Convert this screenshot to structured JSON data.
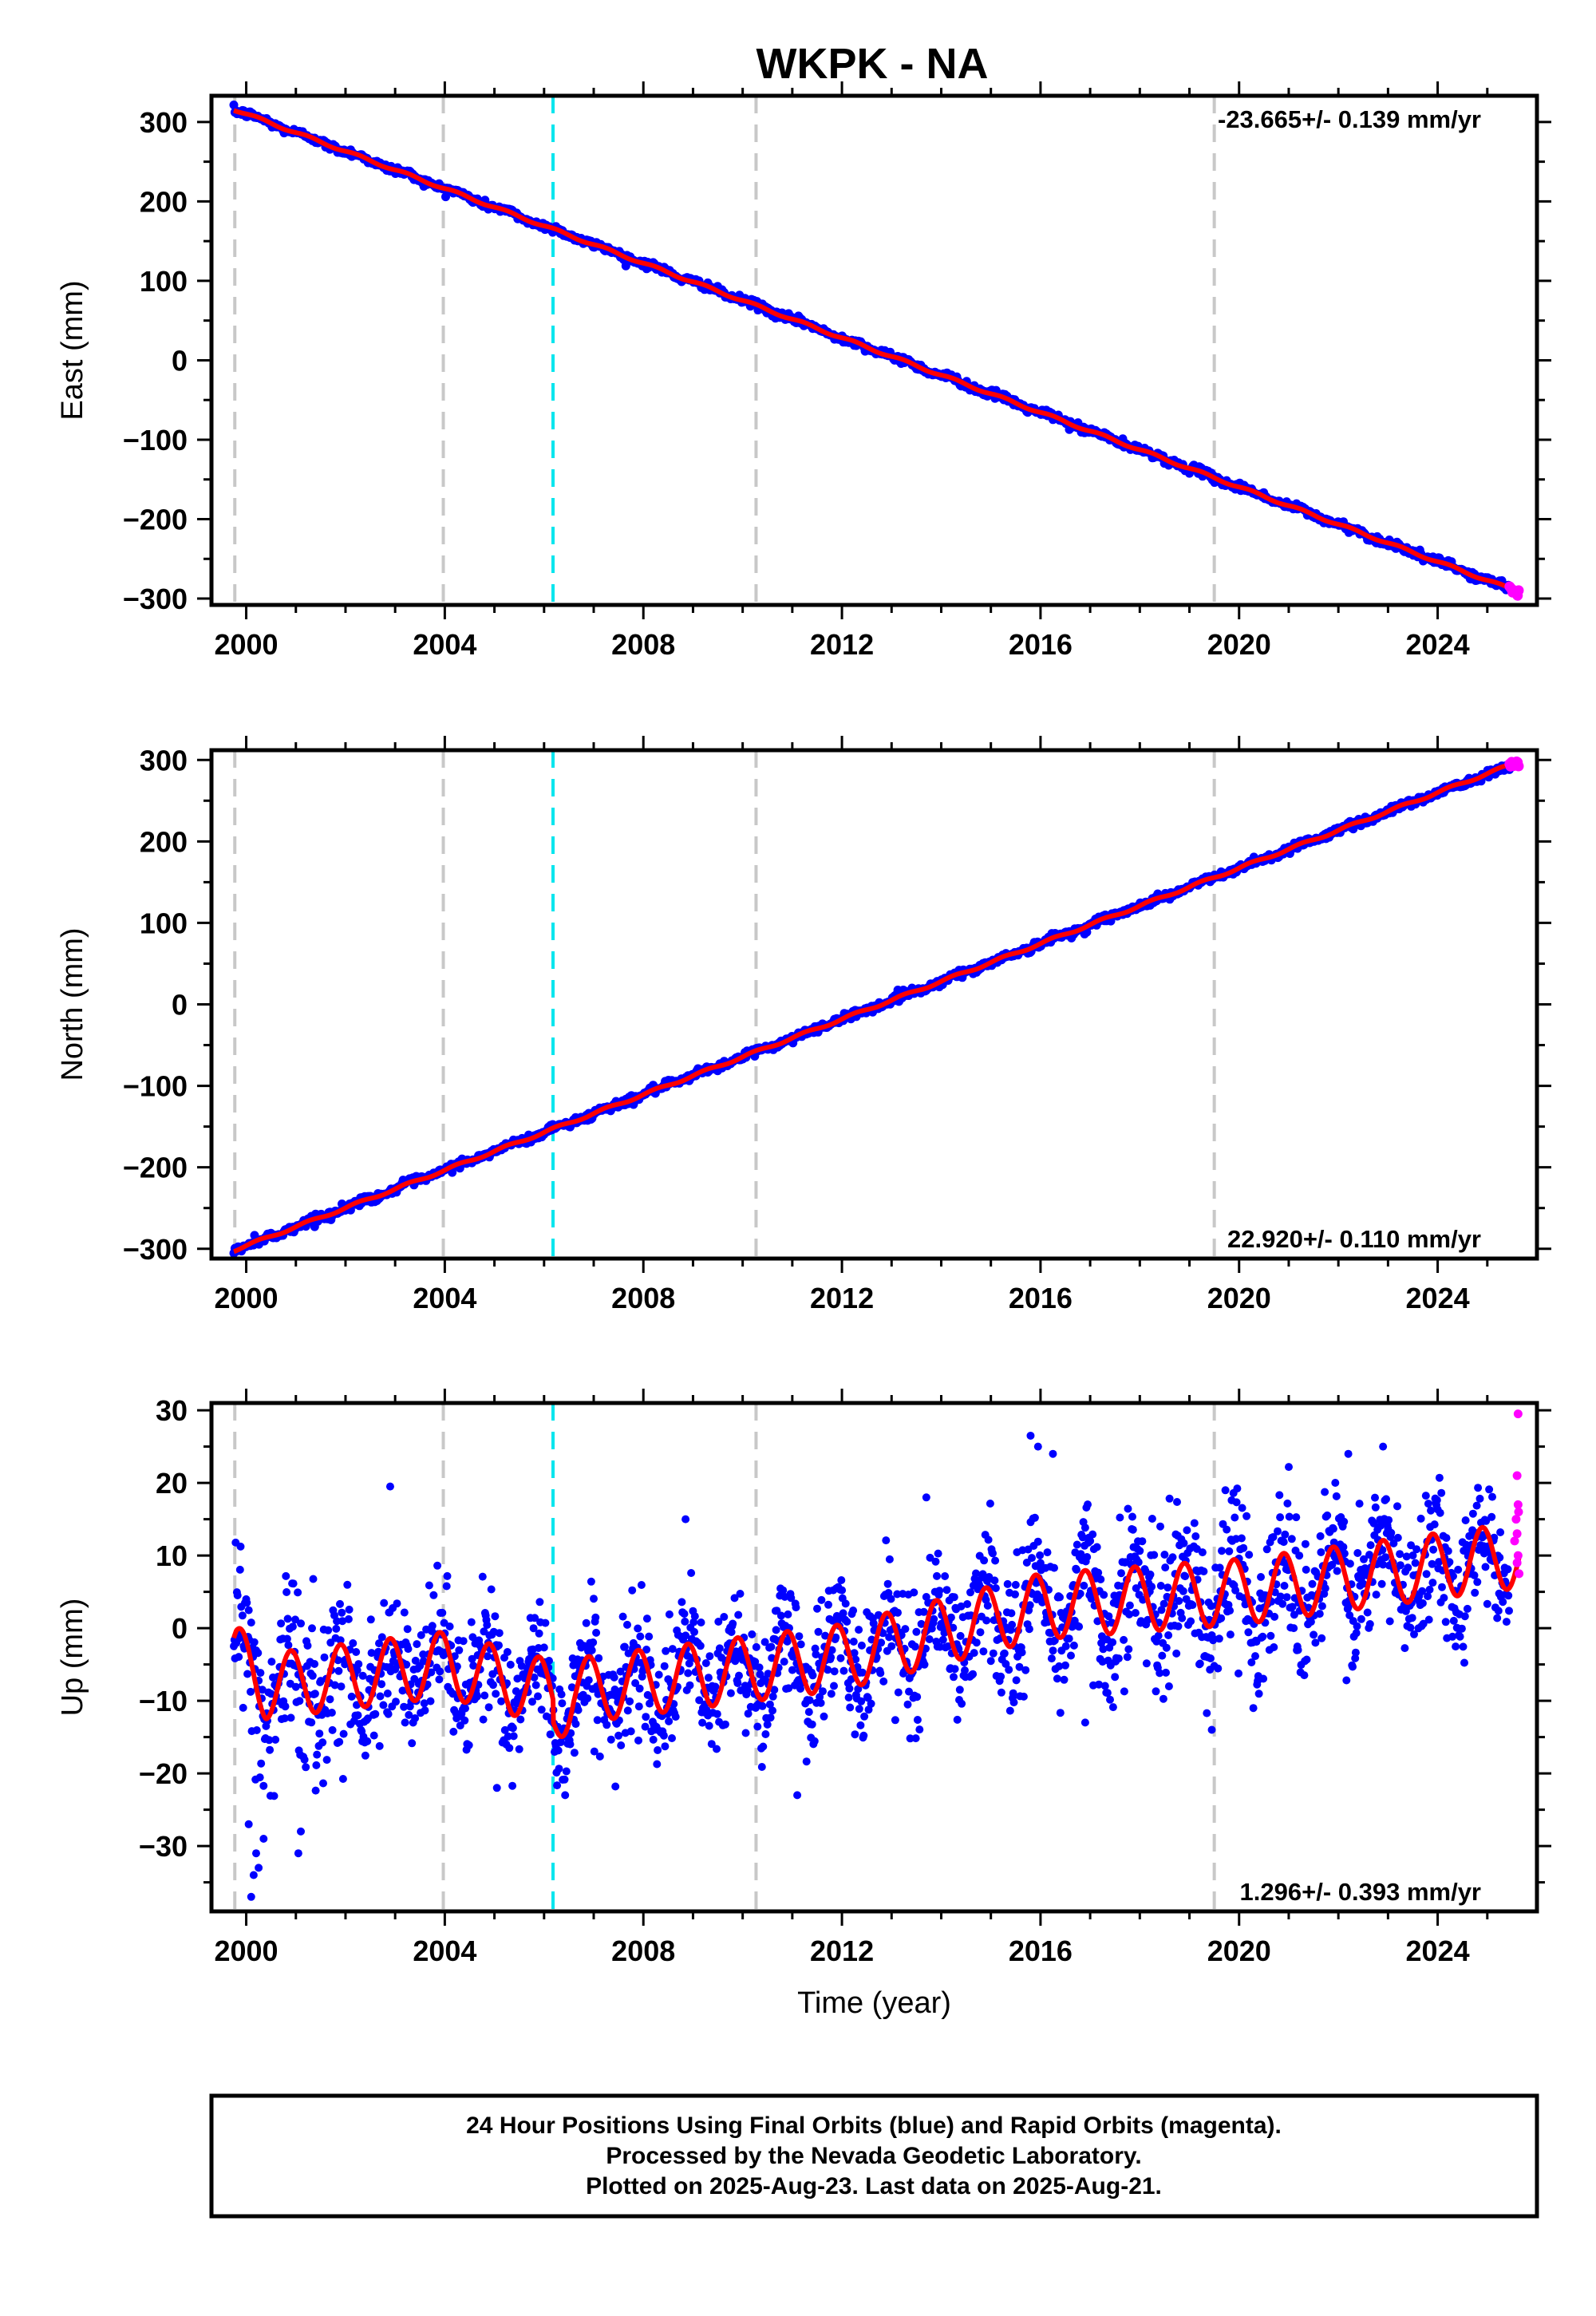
{
  "title": "WKPK - NA",
  "footer": {
    "lines": [
      "24 Hour Positions Using Final Orbits (blue) and Rapid Orbits (magenta).",
      "Processed by the Nevada Geodetic Laboratory.",
      "Plotted on 2025-Aug-23. Last data on 2025-Aug-21."
    ]
  },
  "colors": {
    "final_orbits": "#0000ff",
    "rapid_orbits": "#ff00ff",
    "model_fit": "#ff0000",
    "equipment_change": "#c8c8c8",
    "earthquake_offset": "#00e5ee"
  },
  "chart_data": [
    {
      "type": "scatter",
      "component": "East",
      "ylabel": "East (mm)",
      "xlabel": "",
      "xlim": [
        1999.3,
        2026.0
      ],
      "ylim": [
        -308,
        333
      ],
      "x_ticks": [
        "2000",
        "2004",
        "2008",
        "2012",
        "2016",
        "2020",
        "2024"
      ],
      "y_ticks": [
        "300",
        "200",
        "100",
        "0",
        "−100",
        "−200",
        "−300"
      ],
      "rate_label": "-23.665+/- 0.139 mm/yr",
      "rate_position": "top-right",
      "rate_mm_per_yr": -23.665,
      "rate_sigma": 0.139,
      "data_start": 1999.75,
      "data_end": 2025.64,
      "start_value": 316,
      "end_value": -292,
      "annual_amplitude": 1.5,
      "daily_scatter": 2.5,
      "rapid_orbit_from": 2025.45,
      "vertical_lines_gray": [
        1999.77,
        2003.97,
        2010.27,
        2019.5
      ],
      "vertical_lines_cyan": [
        2006.18
      ],
      "series": [
        {
          "name": "Final Orbits",
          "role": "final"
        },
        {
          "name": "Rapid Orbits",
          "role": "rapid"
        },
        {
          "name": "Model",
          "role": "model"
        }
      ]
    },
    {
      "type": "scatter",
      "component": "North",
      "ylabel": "North (mm)",
      "xlabel": "",
      "xlim": [
        1999.3,
        2026.0
      ],
      "ylim": [
        -312,
        312
      ],
      "x_ticks": [
        "2000",
        "2004",
        "2008",
        "2012",
        "2016",
        "2020",
        "2024"
      ],
      "y_ticks": [
        "300",
        "200",
        "100",
        "0",
        "−100",
        "−200",
        "−300"
      ],
      "rate_label": "22.920+/- 0.110 mm/yr",
      "rate_position": "bottom-right",
      "rate_mm_per_yr": 22.92,
      "rate_sigma": 0.11,
      "data_start": 1999.75,
      "data_end": 2025.64,
      "start_value": -302,
      "end_value": 298,
      "annual_amplitude": 1.5,
      "daily_scatter": 2.5,
      "rapid_orbit_from": 2025.45,
      "vertical_lines_gray": [
        1999.77,
        2003.97,
        2010.27,
        2019.5
      ],
      "vertical_lines_cyan": [
        2006.18
      ],
      "series": [
        {
          "name": "Final Orbits",
          "role": "final"
        },
        {
          "name": "Rapid Orbits",
          "role": "rapid"
        },
        {
          "name": "Model",
          "role": "model"
        }
      ]
    },
    {
      "type": "scatter",
      "component": "Up",
      "ylabel": "Up (mm)",
      "xlabel": "Time (year)",
      "xlim": [
        1999.3,
        2026.0
      ],
      "ylim": [
        -39,
        31
      ],
      "x_ticks": [
        "2000",
        "2004",
        "2008",
        "2012",
        "2016",
        "2020",
        "2024"
      ],
      "y_ticks": [
        "30",
        "20",
        "10",
        "0",
        "−10",
        "−20",
        "−30"
      ],
      "rate_label": "1.296+/- 0.393 mm/yr",
      "rate_position": "bottom-right",
      "rate_mm_per_yr": 1.296,
      "rate_sigma": 0.393,
      "data_start": 1999.75,
      "data_end": 2025.64,
      "annual_amplitude": 4.5,
      "daily_scatter": 4.5,
      "rapid_orbit_from": 2025.45,
      "vertical_lines_gray": [
        1999.77,
        2003.97,
        2010.27,
        2019.5
      ],
      "vertical_lines_cyan": [
        2006.18
      ],
      "model_trend": [
        {
          "x": 1999.8,
          "y": -4
        },
        {
          "x": 2000.4,
          "y": -8
        },
        {
          "x": 2004.0,
          "y": -5
        },
        {
          "x": 2006.2,
          "y": -9
        },
        {
          "x": 2012.0,
          "y": -4
        },
        {
          "x": 2016.0,
          "y": 3
        },
        {
          "x": 2020.0,
          "y": 5
        },
        {
          "x": 2025.6,
          "y": 10
        }
      ],
      "outliers": [
        {
          "x": 2000.1,
          "y": -37
        },
        {
          "x": 2000.15,
          "y": -34
        },
        {
          "x": 2000.2,
          "y": -31
        },
        {
          "x": 2000.25,
          "y": -33
        },
        {
          "x": 2000.35,
          "y": -29
        },
        {
          "x": 2000.05,
          "y": -27
        },
        {
          "x": 2001.05,
          "y": -31
        },
        {
          "x": 2001.1,
          "y": -28
        },
        {
          "x": 2002.9,
          "y": 19.5
        },
        {
          "x": 2015.8,
          "y": 26.5
        },
        {
          "x": 2015.95,
          "y": 25
        },
        {
          "x": 2016.25,
          "y": 24
        },
        {
          "x": 2022.2,
          "y": 24
        },
        {
          "x": 2022.9,
          "y": 25
        },
        {
          "x": 2008.85,
          "y": 15
        },
        {
          "x": 2011.1,
          "y": -23
        },
        {
          "x": 2013.7,
          "y": 18
        },
        {
          "x": 2005.05,
          "y": -22
        },
        {
          "x": 2016.9,
          "y": -13
        },
        {
          "x": 2019.45,
          "y": -14
        }
      ],
      "rapid_points": [
        {
          "x": 2025.62,
          "y": 29.5
        },
        {
          "x": 2025.6,
          "y": 21
        },
        {
          "x": 2025.62,
          "y": 17
        },
        {
          "x": 2025.58,
          "y": 15
        },
        {
          "x": 2025.63,
          "y": 16
        },
        {
          "x": 2025.6,
          "y": 13
        },
        {
          "x": 2025.55,
          "y": 12
        },
        {
          "x": 2025.62,
          "y": 10
        },
        {
          "x": 2025.6,
          "y": 9
        },
        {
          "x": 2025.64,
          "y": 7.5
        }
      ],
      "series": [
        {
          "name": "Final Orbits",
          "role": "final"
        },
        {
          "name": "Rapid Orbits",
          "role": "rapid"
        },
        {
          "name": "Model",
          "role": "model"
        }
      ]
    }
  ]
}
